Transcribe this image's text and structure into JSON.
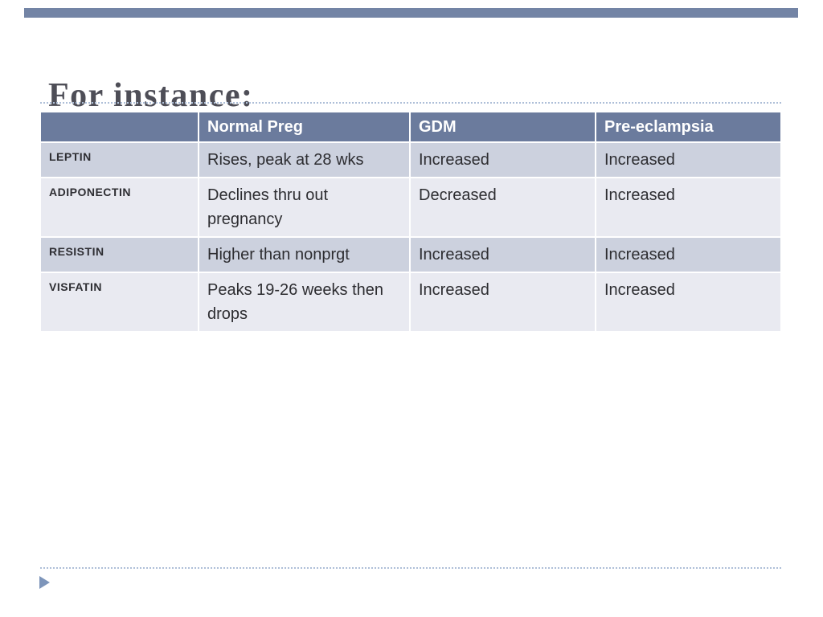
{
  "slide": {
    "title": "For instance:"
  },
  "table": {
    "headers": [
      "",
      "Normal Preg",
      "GDM",
      "Pre-eclampsia"
    ],
    "rows": [
      [
        "LEPTIN",
        "Rises, peak at 28 wks",
        "Increased",
        "Increased"
      ],
      [
        "ADIPONECTIN",
        "Declines  thru out pregnancy",
        "Decreased",
        "Increased"
      ],
      [
        "RESISTIN",
        "Higher than nonprgt",
        "Increased",
        "Increased"
      ],
      [
        "VISFATIN",
        "Peaks 19-26 weeks then drops",
        "Increased",
        "Increased"
      ]
    ]
  },
  "colors": {
    "accent_bar": "#7384a5",
    "table_header_bg": "#6b7b9d",
    "row_dark": "#ccd1de",
    "row_light": "#e9eaf1",
    "title_text": "#4e4e57",
    "dotted_rule": "#aebfd8"
  }
}
